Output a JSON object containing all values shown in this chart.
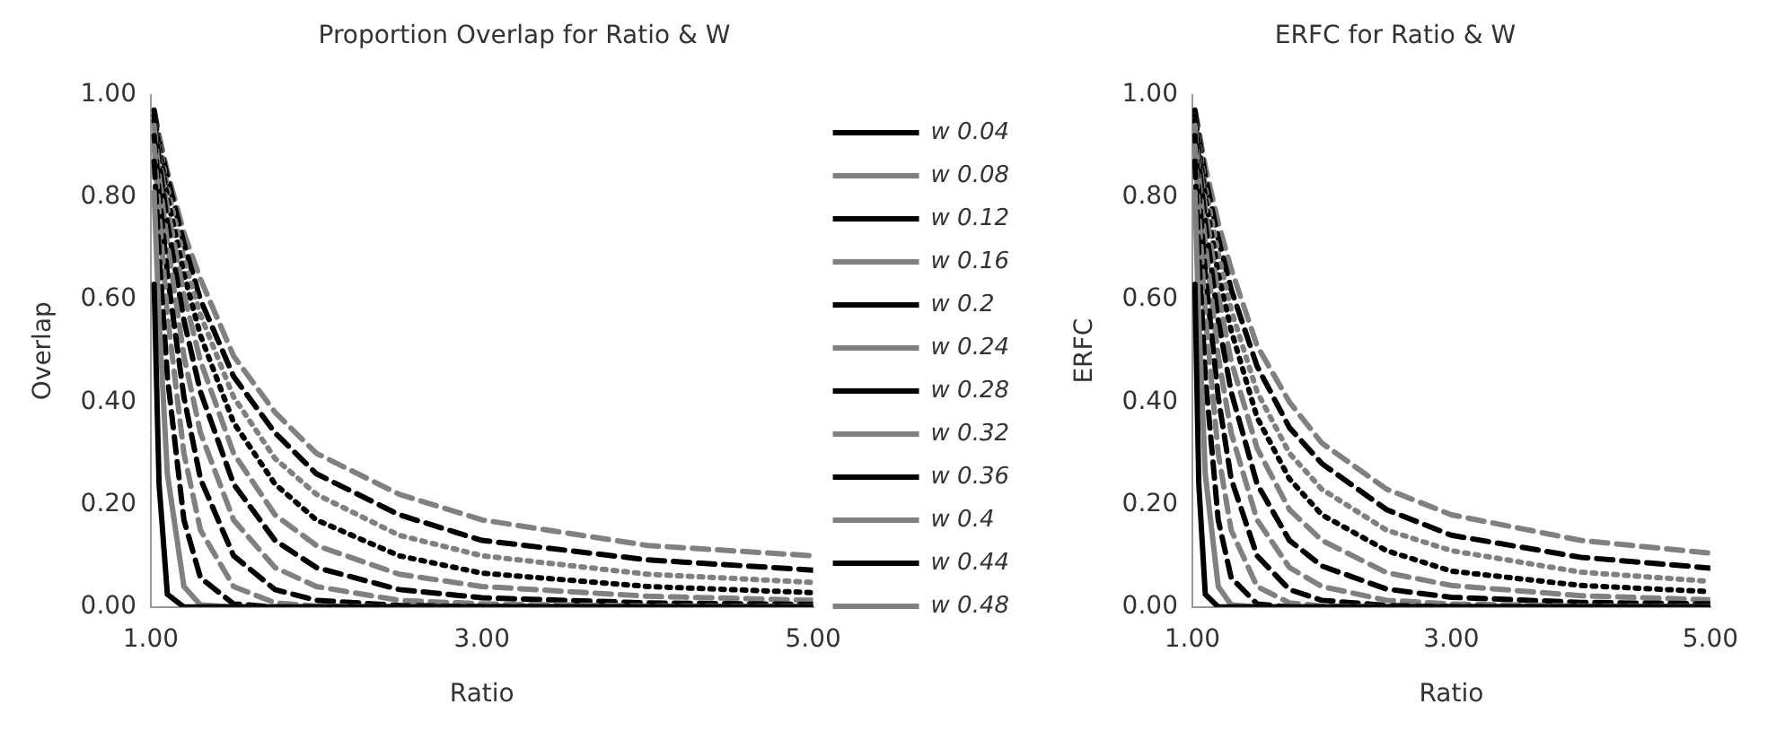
{
  "chart_data": [
    {
      "type": "line",
      "title": "Proportion Overlap for Ratio & W",
      "xlabel": "Ratio",
      "ylabel": "Overlap",
      "x": [
        1.02,
        1.05,
        1.1,
        1.2,
        1.3,
        1.5,
        1.75,
        2,
        2.5,
        3,
        4,
        5
      ],
      "xlim": [
        1,
        5
      ],
      "xticks": [
        {
          "value": 1,
          "label": "1.00"
        },
        {
          "value": 3,
          "label": "3.00"
        },
        {
          "value": 5,
          "label": "5.00"
        }
      ],
      "ylim": [
        0,
        1
      ],
      "yticks": [
        {
          "value": 0,
          "label": "0.00"
        },
        {
          "value": 0.2,
          "label": "0.20"
        },
        {
          "value": 0.4,
          "label": "0.40"
        },
        {
          "value": 0.6,
          "label": "0.60"
        },
        {
          "value": 0.8,
          "label": "0.80"
        },
        {
          "value": 1,
          "label": "1.00"
        }
      ],
      "grid": false,
      "legend": "right",
      "marker": "none",
      "series": [
        {
          "name": "w 0.04",
          "color": "#000000",
          "line_style": "solid",
          "values": [
            0.63,
            0.24,
            0.025,
            0,
            0,
            0,
            0,
            0,
            0,
            0,
            0,
            0
          ]
        },
        {
          "name": "w 0.08",
          "color": "#808080",
          "line_style": "solid",
          "values": [
            0.81,
            0.56,
            0.26,
            0.04,
            0.004,
            0,
            0,
            0,
            0,
            0,
            0,
            0
          ]
        },
        {
          "name": "w 0.12",
          "color": "#000000",
          "line_style": "dashed",
          "values": [
            0.87,
            0.69,
            0.45,
            0.17,
            0.057,
            0.006,
            0,
            0,
            0,
            0,
            0,
            0
          ]
        },
        {
          "name": "w 0.16",
          "color": "#808080",
          "line_style": "dashed",
          "values": [
            0.9,
            0.77,
            0.57,
            0.3,
            0.15,
            0.04,
            0.008,
            0.002,
            0,
            0,
            0,
            0
          ]
        },
        {
          "name": "w 0.2",
          "color": "#000000",
          "line_style": "dashed",
          "values": [
            0.92,
            0.81,
            0.65,
            0.41,
            0.25,
            0.1,
            0.034,
            0.013,
            0.003,
            0.001,
            0,
            0
          ]
        },
        {
          "name": "w 0.24",
          "color": "#808080",
          "line_style": "dashed",
          "values": [
            0.94,
            0.84,
            0.71,
            0.49,
            0.34,
            0.17,
            0.077,
            0.04,
            0.013,
            0.006,
            0.002,
            0.001
          ]
        },
        {
          "name": "w 0.28",
          "color": "#000000",
          "line_style": "dashed",
          "values": [
            0.95,
            0.87,
            0.75,
            0.56,
            0.42,
            0.24,
            0.13,
            0.077,
            0.034,
            0.018,
            0.008,
            0.005
          ]
        },
        {
          "name": "w 0.32",
          "color": "#808080",
          "line_style": "dashed",
          "values": [
            0.95,
            0.88,
            0.78,
            0.61,
            0.48,
            0.3,
            0.18,
            0.12,
            0.064,
            0.04,
            0.021,
            0.013
          ]
        },
        {
          "name": "w 0.36",
          "color": "#000000",
          "line_style": "dotted",
          "values": [
            0.96,
            0.9,
            0.8,
            0.65,
            0.53,
            0.36,
            0.24,
            0.17,
            0.1,
            0.066,
            0.04,
            0.028
          ]
        },
        {
          "name": "w 0.4",
          "color": "#808080",
          "line_style": "dotted",
          "values": [
            0.96,
            0.91,
            0.82,
            0.68,
            0.57,
            0.41,
            0.29,
            0.22,
            0.14,
            0.1,
            0.064,
            0.048
          ]
        },
        {
          "name": "w 0.44",
          "color": "#000000",
          "line_style": "dashed",
          "values": [
            0.97,
            0.91,
            0.84,
            0.71,
            0.6,
            0.45,
            0.34,
            0.26,
            0.18,
            0.13,
            0.092,
            0.072
          ]
        },
        {
          "name": "w 0.48",
          "color": "#808080",
          "line_style": "dashed",
          "values": [
            0.97,
            0.92,
            0.85,
            0.73,
            0.64,
            0.49,
            0.38,
            0.3,
            0.22,
            0.17,
            0.12,
            0.1
          ]
        }
      ]
    },
    {
      "type": "line",
      "title": "ERFC for Ratio & W",
      "xlabel": "Ratio",
      "ylabel": "ERFC",
      "x": [
        1.02,
        1.05,
        1.1,
        1.2,
        1.3,
        1.5,
        1.75,
        2,
        2.5,
        3,
        4,
        5
      ],
      "xlim": [
        1,
        5
      ],
      "xticks": [
        {
          "value": 1,
          "label": "1.00"
        },
        {
          "value": 3,
          "label": "3.00"
        },
        {
          "value": 5,
          "label": "5.00"
        }
      ],
      "ylim": [
        0,
        1
      ],
      "yticks": [
        {
          "value": 0,
          "label": "0.00"
        },
        {
          "value": 0.2,
          "label": "0.20"
        },
        {
          "value": 0.4,
          "label": "0.40"
        },
        {
          "value": 0.6,
          "label": "0.60"
        },
        {
          "value": 0.8,
          "label": "0.80"
        },
        {
          "value": 1,
          "label": "1.00"
        }
      ],
      "grid": false,
      "marker": "none",
      "series": [
        {
          "color": "#000000",
          "line_style": "solid",
          "values": [
            0.63,
            0.24,
            0.025,
            0,
            0,
            0,
            0,
            0,
            0,
            0,
            0,
            0
          ]
        },
        {
          "color": "#808080",
          "line_style": "solid",
          "values": [
            0.81,
            0.56,
            0.26,
            0.04,
            0.004,
            0,
            0,
            0,
            0,
            0,
            0,
            0
          ]
        },
        {
          "color": "#000000",
          "line_style": "dashed",
          "values": [
            0.87,
            0.69,
            0.45,
            0.17,
            0.057,
            0.006,
            0,
            0,
            0,
            0,
            0,
            0
          ]
        },
        {
          "color": "#808080",
          "line_style": "dashed",
          "values": [
            0.9,
            0.77,
            0.57,
            0.3,
            0.15,
            0.04,
            0.008,
            0.002,
            0,
            0,
            0,
            0
          ]
        },
        {
          "color": "#000000",
          "line_style": "dashed",
          "values": [
            0.92,
            0.81,
            0.65,
            0.41,
            0.25,
            0.1,
            0.034,
            0.013,
            0.003,
            0.001,
            0,
            0
          ]
        },
        {
          "color": "#808080",
          "line_style": "dashed",
          "values": [
            0.94,
            0.84,
            0.71,
            0.49,
            0.34,
            0.17,
            0.077,
            0.04,
            0.013,
            0.006,
            0.002,
            0.001
          ]
        },
        {
          "color": "#000000",
          "line_style": "dashed",
          "values": [
            0.95,
            0.87,
            0.75,
            0.56,
            0.42,
            0.24,
            0.13,
            0.08,
            0.035,
            0.019,
            0.009,
            0.006
          ]
        },
        {
          "color": "#808080",
          "line_style": "dashed",
          "values": [
            0.95,
            0.88,
            0.78,
            0.61,
            0.48,
            0.31,
            0.19,
            0.13,
            0.067,
            0.042,
            0.022,
            0.014
          ]
        },
        {
          "color": "#000000",
          "line_style": "dotted",
          "values": [
            0.96,
            0.9,
            0.8,
            0.65,
            0.54,
            0.37,
            0.25,
            0.18,
            0.11,
            0.07,
            0.042,
            0.03
          ]
        },
        {
          "color": "#808080",
          "line_style": "dotted",
          "values": [
            0.96,
            0.91,
            0.82,
            0.69,
            0.58,
            0.42,
            0.3,
            0.23,
            0.15,
            0.11,
            0.068,
            0.05
          ]
        },
        {
          "color": "#000000",
          "line_style": "dashed",
          "values": [
            0.97,
            0.92,
            0.84,
            0.72,
            0.62,
            0.47,
            0.35,
            0.28,
            0.19,
            0.14,
            0.097,
            0.076
          ]
        },
        {
          "color": "#808080",
          "line_style": "dashed",
          "values": [
            0.97,
            0.93,
            0.86,
            0.75,
            0.66,
            0.51,
            0.4,
            0.32,
            0.23,
            0.18,
            0.13,
            0.105
          ]
        }
      ]
    }
  ]
}
